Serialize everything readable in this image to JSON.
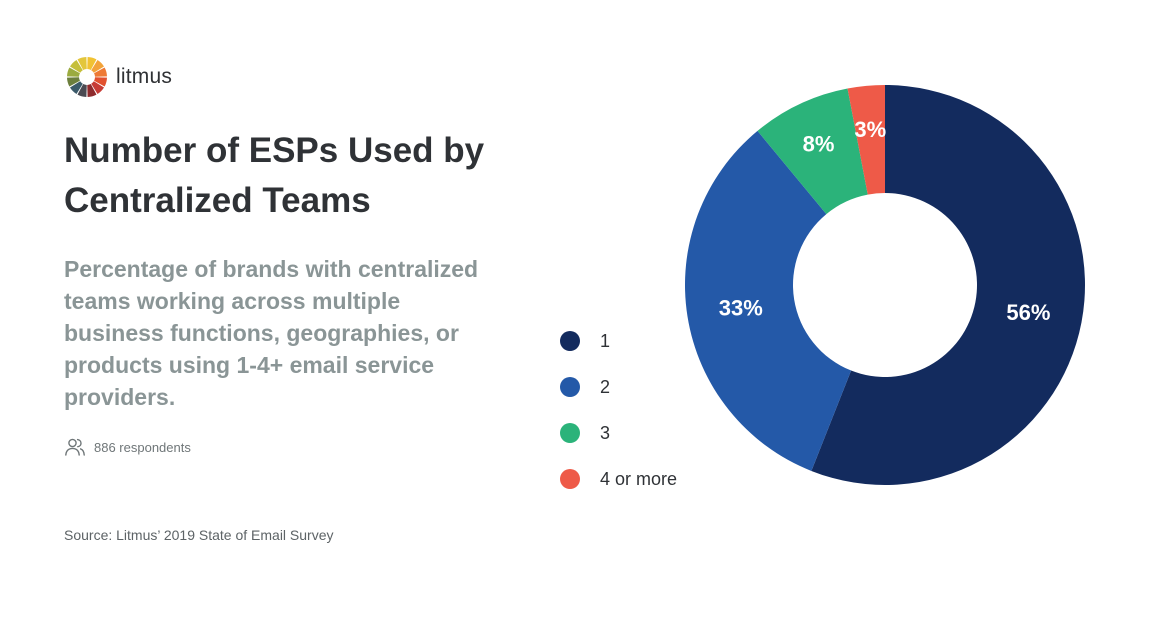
{
  "brand": {
    "name": "litmus"
  },
  "header": {
    "title": "Number of ESPs Used by Centralized Teams",
    "subtitle": "Percentage of brands with centralized teams working across multiple business functions, geographies, or products using 1-4+ email service providers."
  },
  "meta": {
    "respondents": "886 respondents",
    "source": "Source: Litmus’ 2019 State of Email Survey"
  },
  "icons": {
    "logo": "litmus-logo-icon",
    "respondents": "people-icon"
  },
  "chart_data": {
    "type": "pie",
    "donut": true,
    "categories": [
      "1",
      "2",
      "3",
      "4 or more"
    ],
    "values": [
      56,
      33,
      8,
      3
    ],
    "labels": [
      "56%",
      "33%",
      "8%",
      "3%"
    ],
    "colors": [
      "#132b5e",
      "#2459a8",
      "#2bb37a",
      "#ee5a48"
    ],
    "legend_position": "left",
    "start": "top",
    "direction": "clockwise"
  }
}
